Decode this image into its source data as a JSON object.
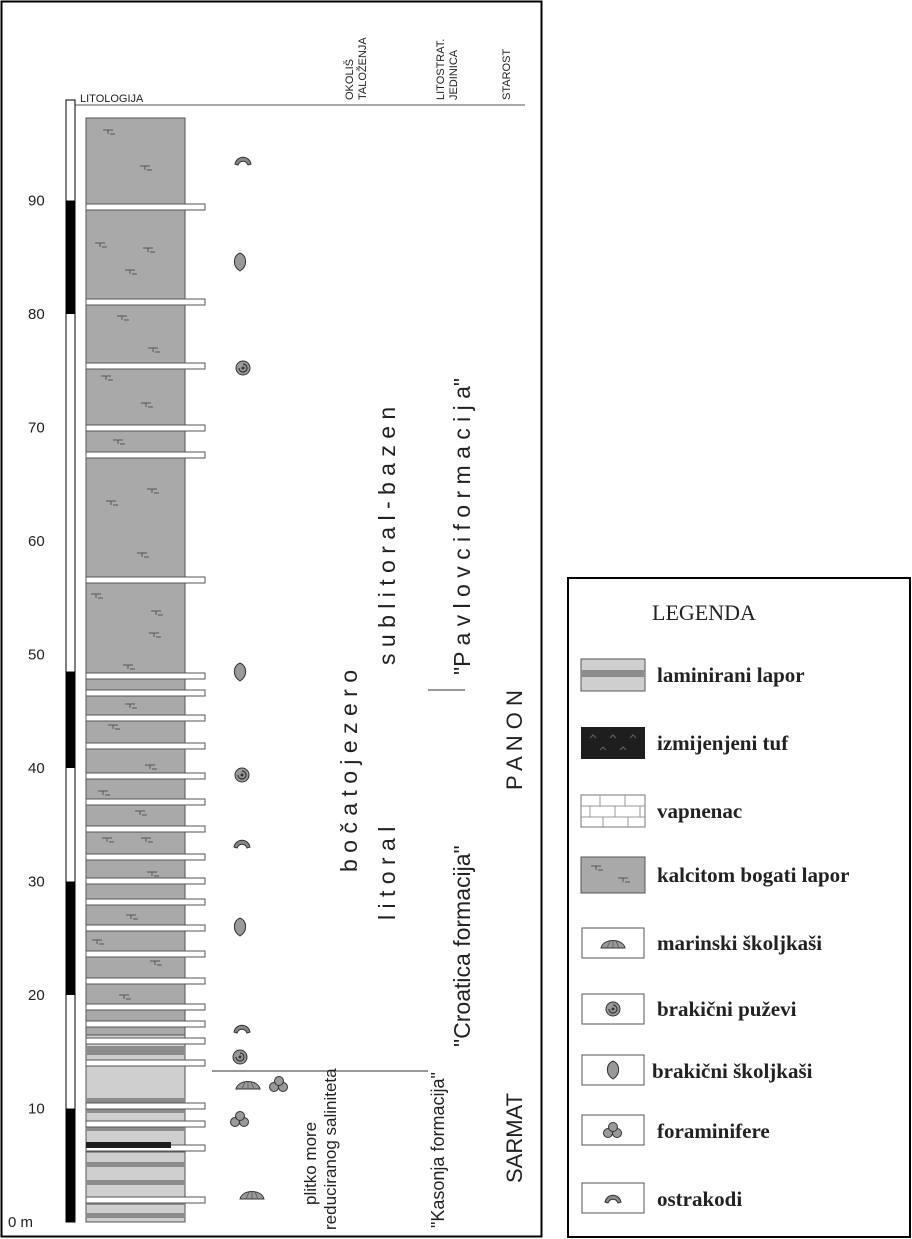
{
  "column_headers": {
    "lithology": "LITOLOGIJA",
    "environment": [
      "OKOLIŠ",
      "TALOŽENJA"
    ],
    "lithostrat": [
      "LITOSTRAT.",
      "JEDINICA"
    ],
    "age": "STAROST"
  },
  "depth_axis": {
    "bottom_label": "0 m",
    "tick_labels": [
      "10",
      "20",
      "30",
      "40",
      "50",
      "60",
      "70",
      "80",
      "90"
    ],
    "black_segments": [
      [
        0,
        10
      ],
      [
        20,
        30
      ],
      [
        40,
        48.5
      ],
      [
        80,
        90
      ]
    ]
  },
  "interpretations": {
    "environment_top_1": "b o č a t o   j e z e r o",
    "environment_top_2": "s u b l i t o r a l  -  b a z e n",
    "environment_mid": "l i t o r a l",
    "environment_bottom_1": "plitko more",
    "environment_bottom_2": "reduciranog saliniteta",
    "unit_pavlovci": "\"P a v l o v c i   f o r m a c i j a\"",
    "unit_croatica": "\"Croatica  formacija\"",
    "unit_kasonja": "\"Kasonja formacija\"",
    "age_panon": "P  A  N  O  N",
    "age_sarmat": "SARMAT"
  },
  "legend": {
    "title": "LEGENDA",
    "items": [
      {
        "icon": "laminated-marl-swatch",
        "label": "laminirani lapor"
      },
      {
        "icon": "altered-tuff-swatch",
        "label": "izmijenjeni tuf"
      },
      {
        "icon": "limestone-swatch",
        "label": "vapnenac"
      },
      {
        "icon": "calcite-rich-marl-swatch",
        "label": "kalcitom bogati lapor"
      },
      {
        "icon": "marine-bivalve-icon",
        "label": "marinski školjkaši"
      },
      {
        "icon": "brackish-gastropod-icon",
        "label": "brakični puževi"
      },
      {
        "icon": "brackish-bivalve-icon",
        "label": "brakični školjkaši"
      },
      {
        "icon": "foraminifera-icon",
        "label": "foraminifere"
      },
      {
        "icon": "ostracod-icon",
        "label": "ostrakodi"
      }
    ]
  },
  "colors": {
    "marl": "#a9a9a9",
    "laminated_light": "#cfcfcf",
    "laminated_dark": "#8c8c8c",
    "tuff": "#1e1e1e",
    "limestone": "#ffffff",
    "frame": "#000000"
  }
}
